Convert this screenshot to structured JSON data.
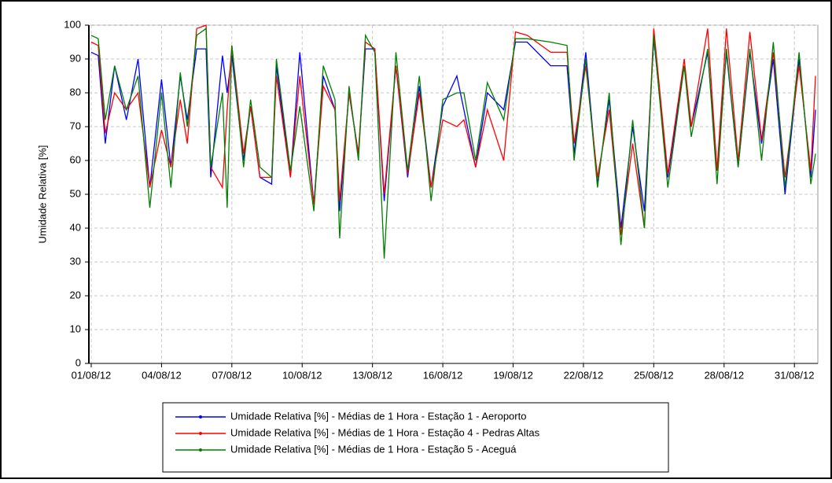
{
  "chart_data": {
    "type": "line",
    "y_label": "Umidade Relativa [%]",
    "x": [
      0,
      0.3,
      0.6,
      1,
      1.5,
      2,
      2.5,
      3,
      3.4,
      3.8,
      4.1,
      4.5,
      4.9,
      5.1,
      5.6,
      5.8,
      6,
      6.5,
      6.8,
      7.2,
      7.7,
      7.9,
      8.5,
      8.9,
      9.5,
      9.9,
      10.4,
      10.6,
      11,
      11.4,
      11.7,
      12.1,
      12.5,
      13,
      13.5,
      14,
      14.5,
      15,
      15.6,
      15.9,
      16.4,
      16.9,
      17.6,
      18.1,
      18.6,
      19.6,
      20.3,
      20.6,
      21.1,
      21.6,
      22.1,
      22.6,
      23.1,
      23.6,
      24,
      24.6,
      25.3,
      25.6,
      26.3,
      26.7,
      27.1,
      27.6,
      28.1,
      28.6,
      29.1,
      29.6,
      30.2,
      30.7,
      30.9
    ],
    "series": [
      {
        "name": "Umidade Relativa [%] - Médias de 1 Hora - Estação 1 - Aeroporto",
        "color": "#0000ff",
        "values": [
          92,
          91,
          65,
          88,
          72,
          90,
          52,
          84,
          58,
          85,
          72,
          93,
          93,
          55,
          91,
          80,
          91,
          60,
          76,
          55,
          53,
          88,
          55,
          92,
          47,
          85,
          75,
          45,
          80,
          62,
          93,
          93,
          48,
          88,
          55,
          82,
          52,
          76,
          85,
          75,
          58,
          80,
          75,
          95,
          95,
          88,
          88,
          62,
          92,
          53,
          78,
          40,
          70,
          45,
          96,
          55,
          88,
          70,
          92,
          57,
          92,
          58,
          92,
          65,
          90,
          50,
          90,
          55,
          75
        ]
      },
      {
        "name": "Umidade Relativa [%] - Médias de 1 Hora - Estação 4 - Pedras Altas",
        "color": "#ff0000",
        "values": [
          95,
          94,
          68,
          80,
          75,
          80,
          52,
          69,
          58,
          78,
          65,
          99,
          100,
          58,
          52,
          75,
          94,
          62,
          76,
          55,
          55,
          85,
          55,
          85,
          47,
          82,
          75,
          48,
          80,
          62,
          95,
          93,
          50,
          88,
          56,
          80,
          52,
          72,
          70,
          72,
          58,
          75,
          60,
          98,
          97,
          92,
          92,
          65,
          88,
          55,
          75,
          38,
          65,
          40,
          99,
          56,
          90,
          70,
          99,
          57,
          99,
          60,
          98,
          66,
          92,
          55,
          88,
          57,
          85
        ]
      },
      {
        "name": "Umidade Relativa [%] - Médias de 1 Hora - Estação 5 - Aceguá",
        "color": "#008000",
        "values": [
          97,
          96,
          72,
          88,
          75,
          85,
          46,
          80,
          52,
          86,
          70,
          97,
          99,
          58,
          80,
          46,
          94,
          58,
          78,
          58,
          55,
          90,
          57,
          76,
          45,
          88,
          78,
          37,
          82,
          60,
          97,
          92,
          31,
          92,
          57,
          85,
          48,
          78,
          80,
          80,
          60,
          83,
          72,
          96,
          96,
          95,
          94,
          60,
          90,
          52,
          80,
          35,
          72,
          40,
          97,
          52,
          88,
          67,
          93,
          53,
          93,
          58,
          93,
          60,
          95,
          52,
          92,
          53,
          62
        ]
      }
    ],
    "xlim": [
      -0.1,
      31
    ],
    "xticks": [
      {
        "value": 0,
        "label": "01/08/12"
      },
      {
        "value": 3,
        "label": "04/08/12"
      },
      {
        "value": 6,
        "label": "07/08/12"
      },
      {
        "value": 9,
        "label": "10/08/12"
      },
      {
        "value": 12,
        "label": "13/08/12"
      },
      {
        "value": 15,
        "label": "16/08/12"
      },
      {
        "value": 18,
        "label": "19/08/12"
      },
      {
        "value": 21,
        "label": "22/08/12"
      },
      {
        "value": 24,
        "label": "25/08/12"
      },
      {
        "value": 27,
        "label": "28/08/12"
      },
      {
        "value": 30,
        "label": "31/08/12"
      }
    ],
    "ylim": [
      0,
      100
    ],
    "yticks": [
      0,
      10,
      20,
      30,
      40,
      50,
      60,
      70,
      80,
      90,
      100
    ],
    "grid": true,
    "legend": "bottom"
  }
}
